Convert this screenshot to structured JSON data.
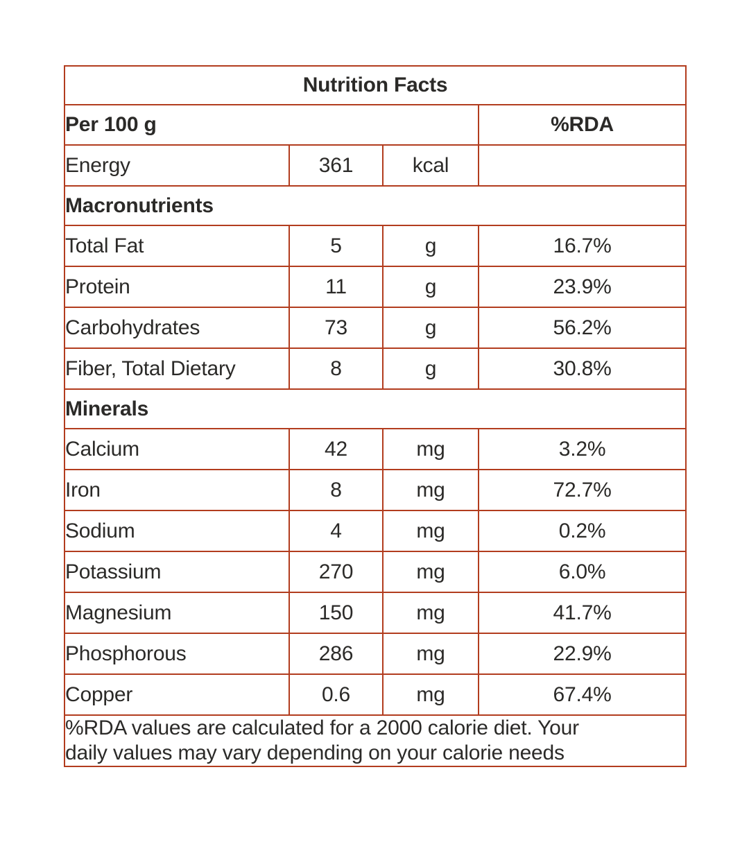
{
  "colors": {
    "border": "#b23c1e",
    "text": "#2b2a28",
    "background": "#ffffff"
  },
  "title": "Nutrition Facts",
  "header": {
    "serving": "Per 100 g",
    "rda": "%RDA"
  },
  "energy": {
    "label": "Energy",
    "value": "361",
    "unit": "kcal",
    "rda": ""
  },
  "sections": [
    {
      "name": "Macronutrients",
      "rows": [
        {
          "label": "Total Fat",
          "value": "5",
          "unit": "g",
          "rda": "16.7%"
        },
        {
          "label": "Protein",
          "value": "11",
          "unit": "g",
          "rda": "23.9%"
        },
        {
          "label": "Carbohydrates",
          "value": "73",
          "unit": "g",
          "rda": "56.2%"
        },
        {
          "label": "Fiber, Total Dietary",
          "value": "8",
          "unit": "g",
          "rda": "30.8%"
        }
      ]
    },
    {
      "name": "Minerals",
      "rows": [
        {
          "label": "Calcium",
          "value": "42",
          "unit": "mg",
          "rda": "3.2%"
        },
        {
          "label": "Iron",
          "value": "8",
          "unit": "mg",
          "rda": "72.7%"
        },
        {
          "label": "Sodium",
          "value": "4",
          "unit": "mg",
          "rda": "0.2%"
        },
        {
          "label": "Potassium",
          "value": "270",
          "unit": "mg",
          "rda": "6.0%"
        },
        {
          "label": "Magnesium",
          "value": "150",
          "unit": "mg",
          "rda": "41.7%"
        },
        {
          "label": "Phosphorous",
          "value": "286",
          "unit": "mg",
          "rda": "22.9%"
        },
        {
          "label": "Copper",
          "value": "0.6",
          "unit": "mg",
          "rda": "67.4%"
        }
      ]
    }
  ],
  "footer": {
    "line1": "%RDA values are calculated for a 2000 calorie diet. Your",
    "line2": "daily values may vary depending on your calorie needs"
  }
}
